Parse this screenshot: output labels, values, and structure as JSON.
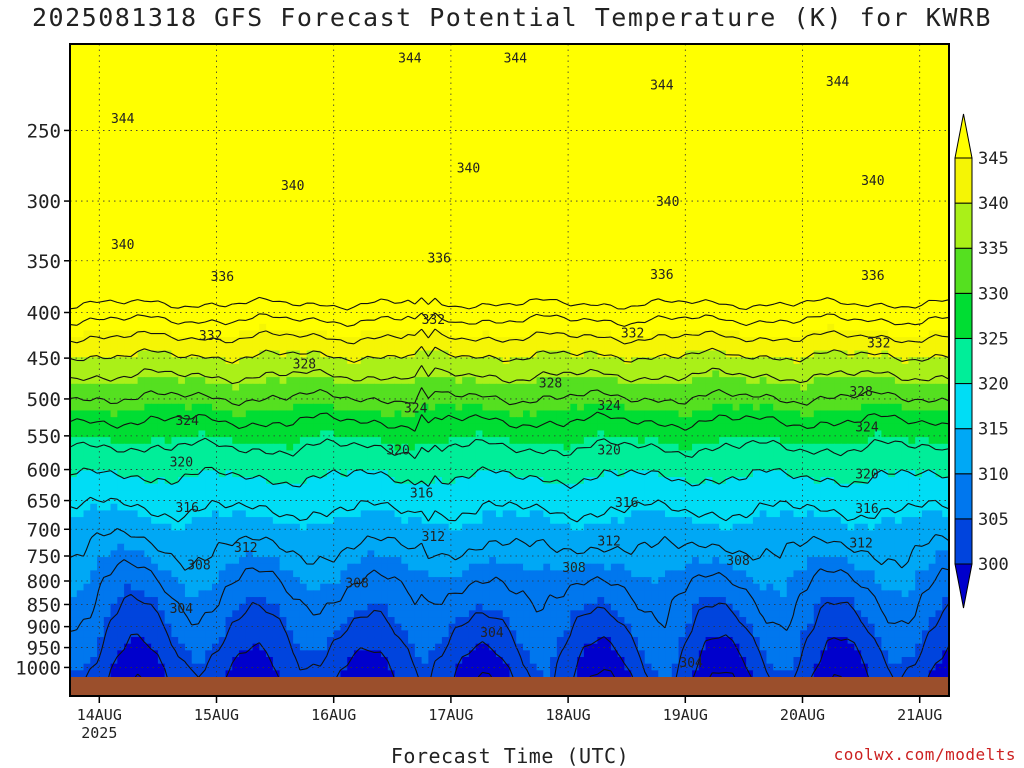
{
  "chart_data": {
    "type": "contour",
    "title": "2025081318 GFS Forecast Potential Temperature (K) for KWRB",
    "xlabel": "Forecast Time (UTC)",
    "ylabel": "",
    "credit": "coolwx.com/modelts",
    "x_ticks": [
      {
        "label": "14AUG",
        "sub": "2025",
        "day": 0.25
      },
      {
        "label": "15AUG",
        "sub": "",
        "day": 1.25
      },
      {
        "label": "16AUG",
        "sub": "",
        "day": 2.25
      },
      {
        "label": "17AUG",
        "sub": "",
        "day": 3.25
      },
      {
        "label": "18AUG",
        "sub": "",
        "day": 4.25
      },
      {
        "label": "19AUG",
        "sub": "",
        "day": 5.25
      },
      {
        "label": "20AUG",
        "sub": "",
        "day": 6.25
      },
      {
        "label": "21AUG",
        "sub": "",
        "day": 7.25
      }
    ],
    "xlim_days": [
      0,
      7.5
    ],
    "y_scale": "log-pressure",
    "y_ticks_hpa": [
      250,
      300,
      350,
      400,
      450,
      500,
      550,
      600,
      650,
      700,
      750,
      800,
      850,
      900,
      950,
      1000
    ],
    "ylim_hpa": [
      200,
      1025
    ],
    "colorbar": {
      "levels": [
        300,
        305,
        310,
        315,
        320,
        325,
        330,
        335,
        340,
        345
      ],
      "colors": [
        "#0000cc",
        "#0044dd",
        "#0077ee",
        "#00a8f5",
        "#00ddf5",
        "#00ee99",
        "#00dd33",
        "#55e020",
        "#aaf018",
        "#f5f505",
        "#ffff00"
      ],
      "extend": "both"
    },
    "contour_interval": 4,
    "contour_labels": [
      {
        "value": 344,
        "day": 0.45,
        "hpa": 242
      },
      {
        "value": 344,
        "day": 2.9,
        "hpa": 207
      },
      {
        "value": 344,
        "day": 3.8,
        "hpa": 207
      },
      {
        "value": 344,
        "day": 5.05,
        "hpa": 222
      },
      {
        "value": 344,
        "day": 6.55,
        "hpa": 220
      },
      {
        "value": 340,
        "day": 3.4,
        "hpa": 275
      },
      {
        "value": 340,
        "day": 1.9,
        "hpa": 288
      },
      {
        "value": 340,
        "day": 0.45,
        "hpa": 335
      },
      {
        "value": 340,
        "day": 5.1,
        "hpa": 300
      },
      {
        "value": 340,
        "day": 6.85,
        "hpa": 284
      },
      {
        "value": 336,
        "day": 1.3,
        "hpa": 364
      },
      {
        "value": 336,
        "day": 3.15,
        "hpa": 347
      },
      {
        "value": 336,
        "day": 5.05,
        "hpa": 362
      },
      {
        "value": 336,
        "day": 6.85,
        "hpa": 363
      },
      {
        "value": 332,
        "day": 1.2,
        "hpa": 424
      },
      {
        "value": 332,
        "day": 3.1,
        "hpa": 407
      },
      {
        "value": 332,
        "day": 4.8,
        "hpa": 421
      },
      {
        "value": 332,
        "day": 6.9,
        "hpa": 432
      },
      {
        "value": 328,
        "day": 2.0,
        "hpa": 456
      },
      {
        "value": 328,
        "day": 4.1,
        "hpa": 479
      },
      {
        "value": 328,
        "day": 6.75,
        "hpa": 490
      },
      {
        "value": 324,
        "day": 1.0,
        "hpa": 528
      },
      {
        "value": 324,
        "day": 2.95,
        "hpa": 511
      },
      {
        "value": 324,
        "day": 4.6,
        "hpa": 508
      },
      {
        "value": 324,
        "day": 6.8,
        "hpa": 537
      },
      {
        "value": 320,
        "day": 0.95,
        "hpa": 588
      },
      {
        "value": 320,
        "day": 2.8,
        "hpa": 570
      },
      {
        "value": 320,
        "day": 4.6,
        "hpa": 570
      },
      {
        "value": 320,
        "day": 6.8,
        "hpa": 606
      },
      {
        "value": 316,
        "day": 1.0,
        "hpa": 661
      },
      {
        "value": 316,
        "day": 3.0,
        "hpa": 637
      },
      {
        "value": 316,
        "day": 4.75,
        "hpa": 652
      },
      {
        "value": 316,
        "day": 6.8,
        "hpa": 663
      },
      {
        "value": 312,
        "day": 1.5,
        "hpa": 733
      },
      {
        "value": 312,
        "day": 3.1,
        "hpa": 712
      },
      {
        "value": 312,
        "day": 4.6,
        "hpa": 721
      },
      {
        "value": 312,
        "day": 6.75,
        "hpa": 724
      },
      {
        "value": 308,
        "day": 1.1,
        "hpa": 767
      },
      {
        "value": 308,
        "day": 2.45,
        "hpa": 803
      },
      {
        "value": 308,
        "day": 4.3,
        "hpa": 772
      },
      {
        "value": 308,
        "day": 5.7,
        "hpa": 758
      },
      {
        "value": 304,
        "day": 0.95,
        "hpa": 858
      },
      {
        "value": 304,
        "day": 3.6,
        "hpa": 912
      },
      {
        "value": 304,
        "day": 5.3,
        "hpa": 986
      }
    ]
  },
  "bg": "#ffffff",
  "ground_color": "#9b4f2c",
  "credit_color": "#cc2020"
}
